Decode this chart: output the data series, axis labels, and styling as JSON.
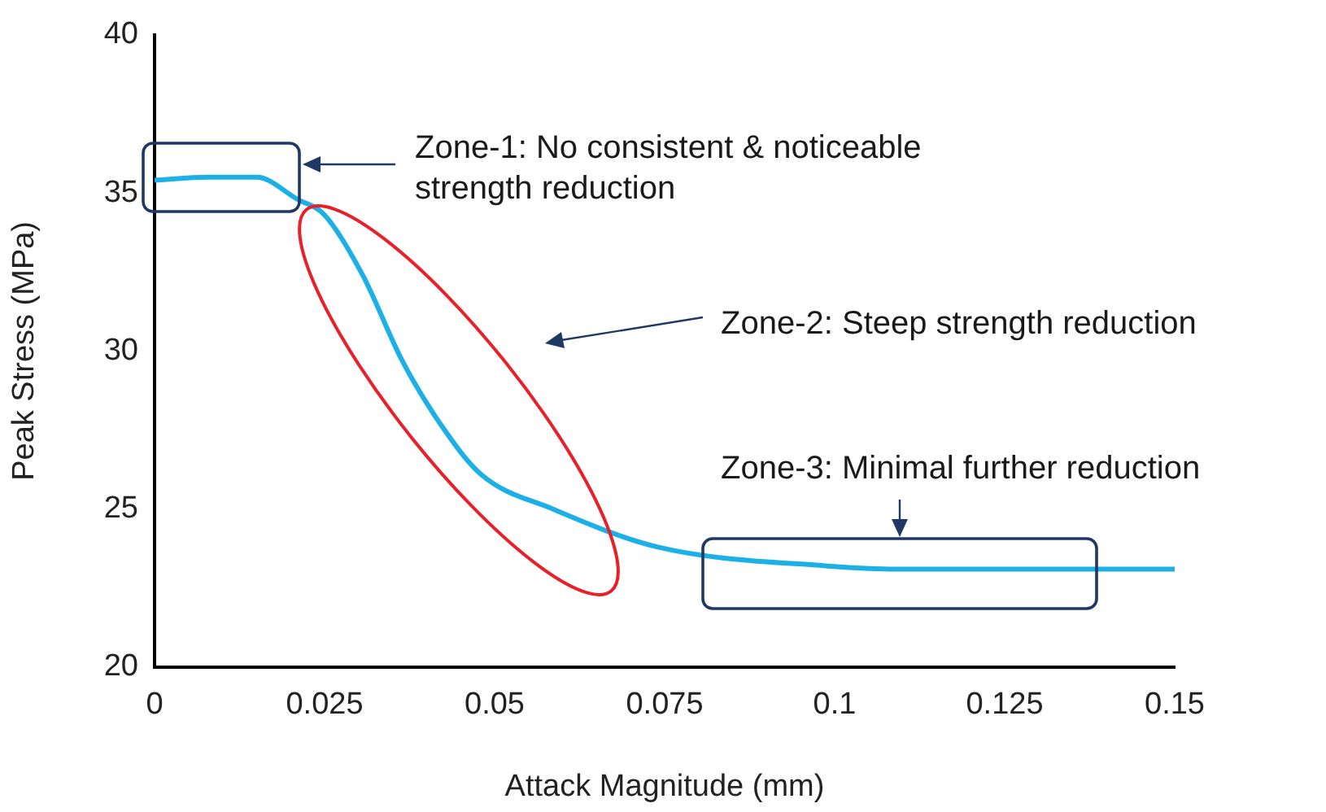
{
  "chart_data": {
    "type": "line",
    "xlabel": "Attack Magnitude (mm)",
    "ylabel": "Peak Stress (MPa)",
    "x": [
      0,
      0.008,
      0.015,
      0.021,
      0.025,
      0.0306,
      0.0364,
      0.042,
      0.048,
      0.0586,
      0.074,
      0.099,
      0.111,
      0.13,
      0.15
    ],
    "series": [
      {
        "color": "#1cb0e6",
        "values": [
          35.4,
          35.5,
          35.5,
          34.8,
          34.3,
          32.4,
          29.7,
          27.7,
          26.1,
          25.0,
          23.8,
          23.2,
          23.1,
          23.1,
          23.1
        ]
      }
    ],
    "xlim": [
      0,
      0.15
    ],
    "xticks": [
      0,
      0.025,
      0.05,
      0.075,
      0.1,
      0.125,
      0.15
    ],
    "ylim": [
      20,
      40
    ],
    "yticks": [
      20,
      25,
      30,
      35,
      40
    ],
    "grid": false,
    "legend": false,
    "marker": "none",
    "line_style": "solid",
    "annotations": [
      "Zone-1: No consistent & noticeable strength reduction",
      "Zone-2: Steep strength reduction",
      "Zone-3: Minimal further reduction"
    ]
  }
}
